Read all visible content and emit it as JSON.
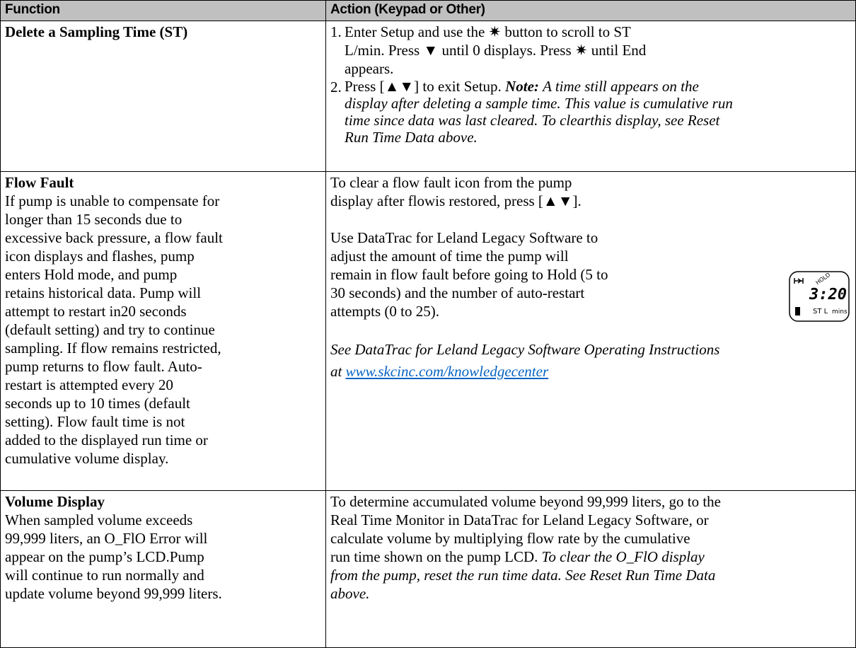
{
  "table": {
    "headers": [
      "Function",
      "Action (Keypad or Other)"
    ],
    "rows": [
      {
        "function": {
          "title": "Delete a Sampling Time (ST)"
        },
        "action": {
          "steps": [
            {
              "number": "1.",
              "lines": [
                "Enter Setup and use the ✷ button to scroll to ST",
                "L/min. Press ▼ until 0 displays. Press ✷ until End",
                "appears."
              ]
            },
            {
              "number": "2.",
              "text": "Press [▲▼] to exit Setup.",
              "note_label": "Note:",
              "note_lines": [
                "A time still appears on the",
                "display after deleting a sample time. This value is cumulative run",
                "time since data was last cleared. To clearthis display, see Reset",
                "Run Time Data above."
              ]
            }
          ]
        }
      },
      {
        "function": {
          "title": "Flow Fault",
          "lines": [
            "If pump is unable to compensate for",
            "longer than 15 seconds due to",
            "excessive back pressure, a flow fault",
            "icon displays and flashes, pump",
            "enters Hold mode, and pump",
            "retains historical data. Pump will",
            "attempt to restart in20 seconds",
            "(default setting) and try to continue",
            "sampling. If flow remains restricted,",
            "pump returns to flow fault. Auto-",
            "restart is attempted every 20",
            "seconds up to 10 times (default",
            "setting). Flow fault time is not",
            "added to the displayed run time or",
            "cumulative volume display."
          ]
        },
        "action": {
          "paragraph_1": [
            "To clear a flow fault icon from the pump",
            "display after flowis restored, press [▲▼]."
          ],
          "paragraph_2": [
            "Use DataTrac for Leland Legacy Software to",
            "adjust the amount of time the pump will",
            "remain in flow fault before going to Hold (5 to",
            "30 seconds) and the number of auto-restart",
            "attempts (0 to 25)."
          ],
          "lcd": {
            "status": "HOLD",
            "time": "3:20",
            "label": "ST L",
            "unit": "mins"
          },
          "reference": "See DataTrac for Leland Legacy Software Operating Instructions",
          "reference_prefix": "at",
          "link": "www.skcinc.com/knowledgecenter"
        }
      },
      {
        "function": {
          "title": "Volume Display",
          "lines": [
            "When sampled volume exceeds",
            "99,999 liters, an O_FlO Error will",
            "appear on the pump’s LCD.Pump",
            "will continue to run normally and",
            "update volume beyond 99,999 liters."
          ]
        },
        "action": {
          "text_lines": [
            "To determine accumulated volume beyond 99,999 liters, go to the",
            "Real Time Monitor in DataTrac for Leland Legacy Software, or",
            "calculate volume by multiplying flow rate by the cumulative",
            "run time shown on the pump LCD."
          ],
          "italic_lines": [
            "To clear the O_FlO display",
            "from the pump, reset the run time data. See Reset Run Time Data",
            "above."
          ]
        }
      }
    ]
  }
}
